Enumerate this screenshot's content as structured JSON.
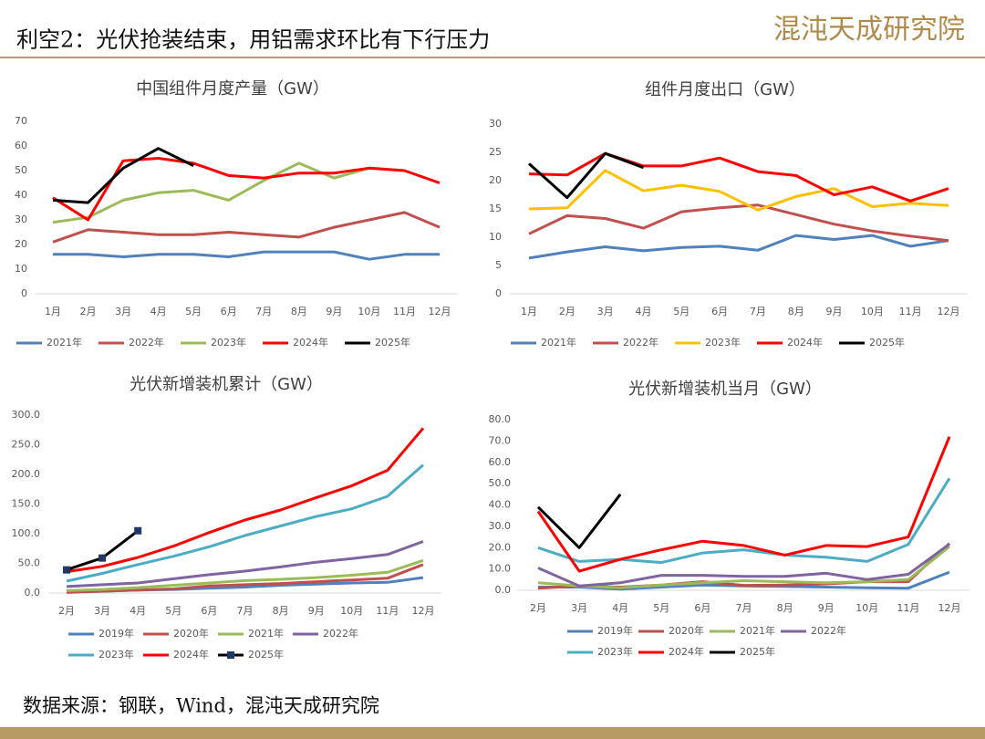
{
  "header": {
    "title": "利空2：光伏抢装结束，用铝需求环比有下行压力",
    "logo": "混沌天成研究院"
  },
  "source": "数据来源：钢联，Wind，混沌天成研究院",
  "chart_data": [
    {
      "type": "line",
      "title": "中国组件月度产量（GW）",
      "categories": [
        "1月",
        "2月",
        "3月",
        "4月",
        "5月",
        "6月",
        "7月",
        "8月",
        "9月",
        "10月",
        "11月",
        "12月"
      ],
      "ylim": [
        0,
        70
      ],
      "yticks": [
        0,
        10,
        20,
        30,
        40,
        50,
        60,
        70
      ],
      "series": [
        {
          "name": "2021年",
          "color": "#4f81bd",
          "values": [
            16,
            16,
            15,
            16,
            16,
            15,
            17,
            17,
            17,
            14,
            16,
            16
          ]
        },
        {
          "name": "2022年",
          "color": "#c0504d",
          "values": [
            21,
            26,
            25,
            24,
            24,
            25,
            24,
            23,
            27,
            30,
            33,
            27
          ]
        },
        {
          "name": "2023年",
          "color": "#9bbb59",
          "values": [
            29,
            31,
            38,
            41,
            42,
            38,
            46,
            53,
            47,
            51,
            50,
            null
          ]
        },
        {
          "name": "2024年",
          "color": "#ff0000",
          "values": [
            39,
            30,
            54,
            55,
            53,
            48,
            47,
            49,
            49,
            51,
            50,
            45
          ]
        },
        {
          "name": "2025年",
          "color": "#000000",
          "values": [
            38,
            37,
            51,
            59,
            52,
            null,
            null,
            null,
            null,
            null,
            null,
            null
          ]
        }
      ]
    },
    {
      "type": "line",
      "title": "组件月度出口（GW）",
      "categories": [
        "1月",
        "2月",
        "3月",
        "4月",
        "5月",
        "6月",
        "7月",
        "8月",
        "9月",
        "10月",
        "11月",
        "12月"
      ],
      "ylim": [
        0,
        30
      ],
      "yticks": [
        0,
        5,
        10,
        15,
        20,
        25,
        30
      ],
      "series": [
        {
          "name": "2021年",
          "color": "#4f81bd",
          "values": [
            6.3,
            7.4,
            8.3,
            7.6,
            8.2,
            8.4,
            7.7,
            10.3,
            9.6,
            10.3,
            8.4,
            9.4
          ]
        },
        {
          "name": "2022年",
          "color": "#c0504d",
          "values": [
            10.6,
            13.8,
            13.3,
            11.6,
            14.5,
            15.2,
            15.7,
            14,
            12.3,
            11.1,
            10.2,
            9.4
          ]
        },
        {
          "name": "2023年",
          "color": "#ffc000",
          "values": [
            15,
            15.2,
            21.8,
            18.2,
            19.2,
            18.1,
            14.8,
            17.2,
            18.6,
            15.4,
            16,
            15.6
          ]
        },
        {
          "name": "2024年",
          "color": "#ff0000",
          "values": [
            21.2,
            21,
            24.8,
            22.6,
            22.6,
            24,
            21.6,
            20.9,
            17.5,
            18.9,
            16.4,
            18.6
          ]
        },
        {
          "name": "2025年",
          "color": "#000000",
          "values": [
            23,
            17,
            24.8,
            22.3,
            null,
            null,
            null,
            null,
            null,
            null,
            null,
            null
          ]
        }
      ]
    },
    {
      "type": "line",
      "title": "光伏新增装机累计（GW）",
      "categories": [
        "2月",
        "3月",
        "4月",
        "5月",
        "6月",
        "7月",
        "8月",
        "9月",
        "10月",
        "11月",
        "12月"
      ],
      "ylim": [
        0,
        300
      ],
      "yticks": [
        {
          "value": 0,
          "label": "0.0"
        },
        {
          "value": 50,
          "label": "50.0"
        },
        {
          "value": 100,
          "label": "100.0"
        },
        {
          "value": 150,
          "label": "150.0"
        },
        {
          "value": 200,
          "label": "200.0"
        },
        {
          "value": 250,
          "label": "250.0"
        },
        {
          "value": 300,
          "label": "300.0"
        }
      ],
      "series": [
        {
          "name": "2019年",
          "color": "#4f81bd",
          "values": [
            2,
            3,
            5,
            6,
            8,
            10,
            13,
            15,
            17,
            18,
            26
          ]
        },
        {
          "name": "2020年",
          "color": "#c0504d",
          "values": [
            1,
            3,
            5,
            7,
            12,
            14,
            16,
            19,
            22,
            25,
            48
          ]
        },
        {
          "name": "2021年",
          "color": "#9bbb59",
          "values": [
            4,
            6,
            9,
            13,
            17,
            21,
            23,
            26,
            30,
            35,
            55
          ]
        },
        {
          "name": "2022年",
          "color": "#8064a2",
          "values": [
            11,
            14,
            17,
            24,
            31,
            37,
            44,
            52,
            58,
            65,
            87
          ]
        },
        {
          "name": "2023年",
          "color": "#4bacc6",
          "values": [
            20,
            33,
            48,
            62,
            78,
            97,
            113,
            129,
            142,
            163,
            216
          ]
        },
        {
          "name": "2024年",
          "color": "#ff0000",
          "values": [
            36,
            45,
            60,
            79,
            102,
            123,
            140,
            161,
            181,
            207,
            278
          ]
        },
        {
          "name": "2025年",
          "color": "#000000",
          "marker": "square",
          "marker_color": "#1f3864",
          "values": [
            39,
            59,
            105,
            null,
            null,
            null,
            null,
            null,
            null,
            null,
            null
          ]
        }
      ]
    },
    {
      "type": "line",
      "title": "光伏新增装机当月（GW）",
      "categories": [
        "2月",
        "3月",
        "4月",
        "5月",
        "6月",
        "7月",
        "8月",
        "9月",
        "10月",
        "11月",
        "12月"
      ],
      "ylim": [
        0,
        80
      ],
      "yticks": [
        {
          "value": 0,
          "label": "0.0"
        },
        {
          "value": 10,
          "label": "10.0"
        },
        {
          "value": 20,
          "label": "20.0"
        },
        {
          "value": 30,
          "label": "30.0"
        },
        {
          "value": 40,
          "label": "40.0"
        },
        {
          "value": 50,
          "label": "50.0"
        },
        {
          "value": 60,
          "label": "60.0"
        },
        {
          "value": 70,
          "label": "70.0"
        },
        {
          "value": 80,
          "label": "80.0"
        }
      ],
      "series": [
        {
          "name": "2019年",
          "color": "#4f81bd",
          "values": [
            1.5,
            1.5,
            0.5,
            1.5,
            2.5,
            2,
            1.8,
            1.5,
            1.2,
            1,
            8.5
          ]
        },
        {
          "name": "2020年",
          "color": "#c0504d",
          "values": [
            1,
            2,
            1.5,
            2.5,
            4,
            2.3,
            2.5,
            3,
            4,
            4,
            22
          ]
        },
        {
          "name": "2021年",
          "color": "#9bbb59",
          "values": [
            3.5,
            2,
            1.2,
            2.5,
            3.5,
            4.5,
            4,
            3.5,
            4,
            5,
            20.5
          ]
        },
        {
          "name": "2022年",
          "color": "#8064a2",
          "values": [
            10.5,
            2,
            3.5,
            7,
            7,
            6.5,
            6.5,
            8,
            5,
            7.5,
            21.7
          ]
        },
        {
          "name": "2023年",
          "color": "#4bacc6",
          "values": [
            20,
            13.5,
            14.5,
            13,
            17.5,
            19,
            16.5,
            15.5,
            13.5,
            21.5,
            52.5
          ]
        },
        {
          "name": "2024年",
          "color": "#ff0000",
          "values": [
            37,
            9,
            14.5,
            19,
            23,
            21,
            16.5,
            21,
            20.5,
            25,
            72
          ]
        },
        {
          "name": "2025年",
          "color": "#000000",
          "values": [
            39,
            20,
            45,
            null,
            null,
            null,
            null,
            null,
            null,
            null,
            null
          ]
        }
      ]
    }
  ]
}
